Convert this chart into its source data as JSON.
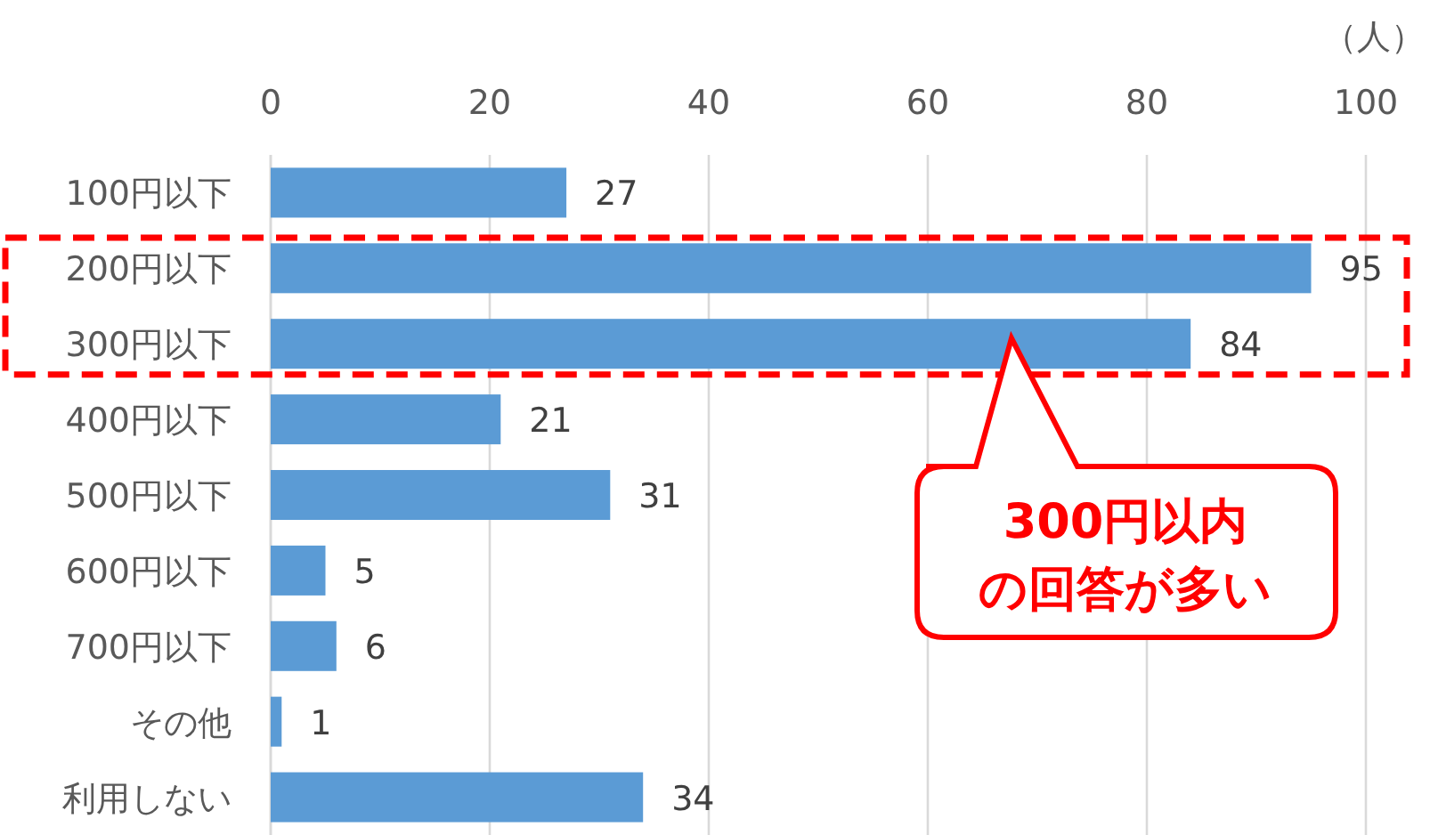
{
  "chart_data": {
    "type": "bar",
    "orientation": "horizontal",
    "categories": [
      "100円以下",
      "200円以下",
      "300円以下",
      "400円以下",
      "500円以下",
      "600円以下",
      "700円以下",
      "その他",
      "利用しない"
    ],
    "values": [
      27,
      95,
      84,
      21,
      31,
      5,
      6,
      1,
      34
    ],
    "color": "#5b9bd5",
    "xlim": [
      0,
      100
    ],
    "xticks": [
      0,
      20,
      40,
      60,
      80,
      100
    ],
    "xlabel": "（人）",
    "grid": "x",
    "data_labels": true,
    "annotations": [
      "300円以内の回答が多い"
    ]
  }
}
